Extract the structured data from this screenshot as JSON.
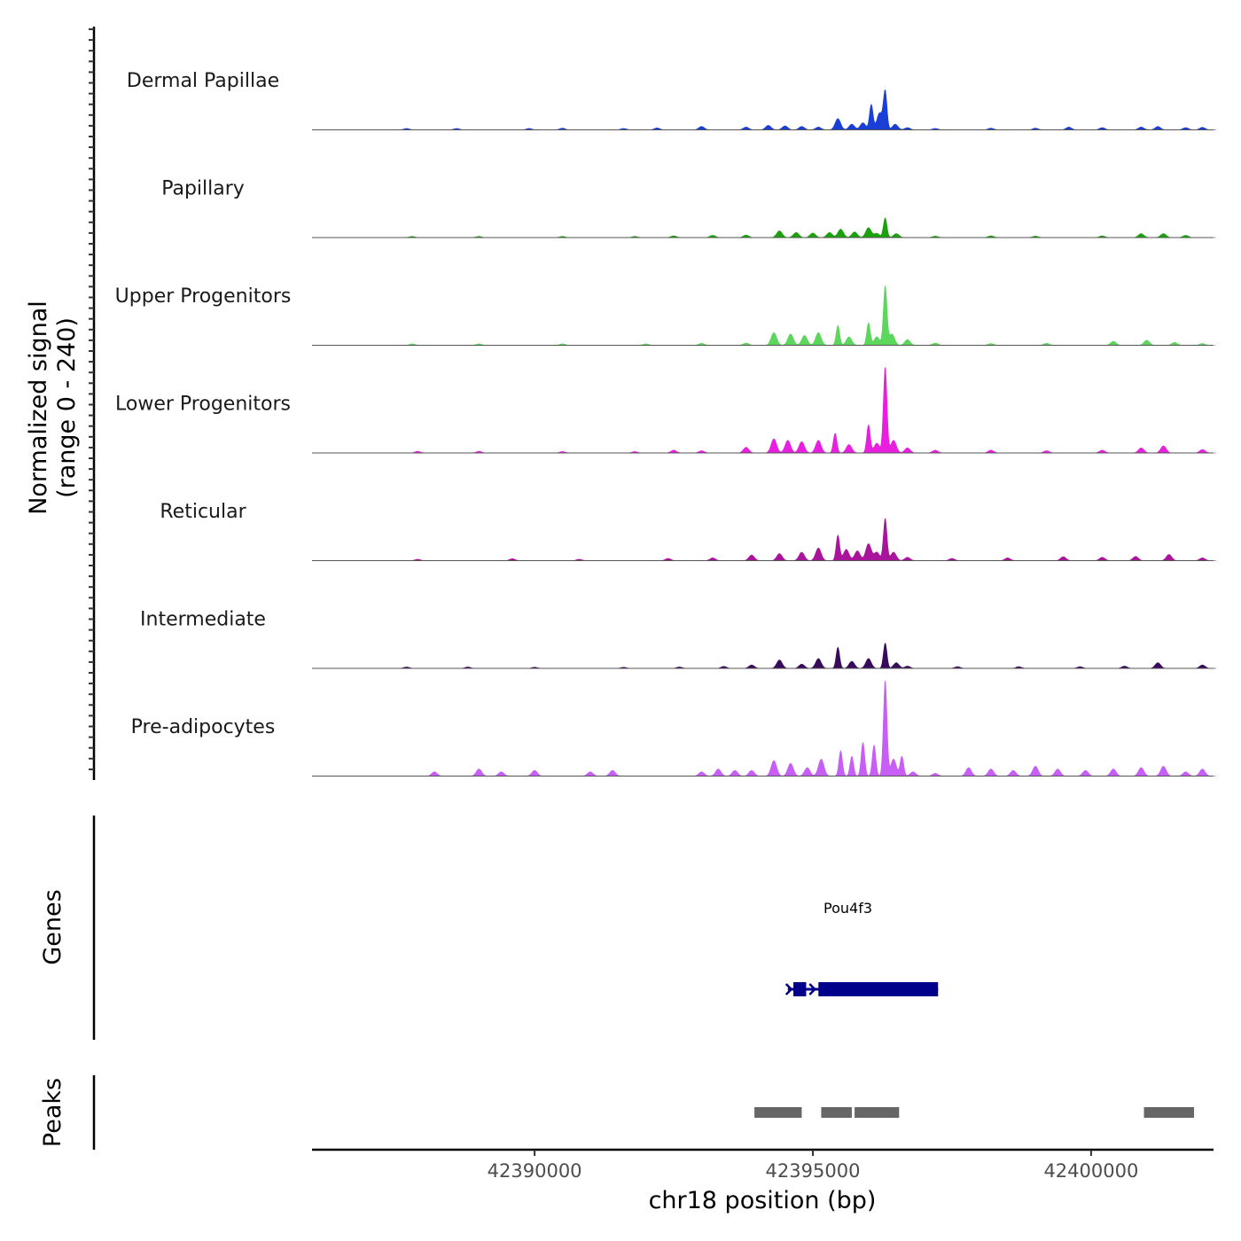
{
  "chart_data": {
    "type": "area",
    "title": "",
    "ylabel": "Normalized signal",
    "ylabel_range": "(range 0 - 240)",
    "ylim": [
      0,
      240
    ],
    "xlabel": "chr18 position (bp)",
    "xlim": [
      42386000,
      42402200
    ],
    "xticks": [
      42390000,
      42395000,
      42400000
    ],
    "xtick_labels": [
      "42390000",
      "42395000",
      "42400000"
    ],
    "tracks": [
      {
        "name": "Dermal Papillae",
        "color": "#1a3fd6",
        "peaks": [
          [
            42387700,
            5
          ],
          [
            42388600,
            5
          ],
          [
            42389900,
            5
          ],
          [
            42390500,
            6
          ],
          [
            42391600,
            5
          ],
          [
            42392200,
            7
          ],
          [
            42393000,
            12
          ],
          [
            42393800,
            10
          ],
          [
            42394200,
            16
          ],
          [
            42394500,
            14
          ],
          [
            42394800,
            12
          ],
          [
            42395100,
            10
          ],
          [
            42395450,
            40
          ],
          [
            42395700,
            20
          ],
          [
            42395900,
            25
          ],
          [
            42396050,
            90
          ],
          [
            42396200,
            60
          ],
          [
            42396300,
            135
          ],
          [
            42396480,
            20
          ],
          [
            42396700,
            8
          ],
          [
            42397200,
            5
          ],
          [
            42398200,
            6
          ],
          [
            42399000,
            6
          ],
          [
            42399600,
            10
          ],
          [
            42400200,
            8
          ],
          [
            42400900,
            10
          ],
          [
            42401200,
            12
          ],
          [
            42401700,
            8
          ],
          [
            42402000,
            9
          ]
        ]
      },
      {
        "name": "Papillary",
        "color": "#1aa10b",
        "peaks": [
          [
            42386800,
            5
          ],
          [
            42387800,
            4
          ],
          [
            42389000,
            4
          ],
          [
            42390500,
            4
          ],
          [
            42391800,
            4
          ],
          [
            42392500,
            6
          ],
          [
            42393200,
            8
          ],
          [
            42393800,
            9
          ],
          [
            42394400,
            24
          ],
          [
            42394700,
            18
          ],
          [
            42395000,
            16
          ],
          [
            42395300,
            18
          ],
          [
            42395500,
            30
          ],
          [
            42395750,
            20
          ],
          [
            42396000,
            35
          ],
          [
            42396150,
            15
          ],
          [
            42396300,
            70
          ],
          [
            42396500,
            14
          ],
          [
            42397200,
            5
          ],
          [
            42398200,
            6
          ],
          [
            42399000,
            5
          ],
          [
            42400200,
            6
          ],
          [
            42400900,
            14
          ],
          [
            42401300,
            14
          ],
          [
            42401700,
            8
          ]
        ]
      },
      {
        "name": "Upper Progenitors",
        "color": "#5cd65c",
        "peaks": [
          [
            42386800,
            7
          ],
          [
            42387800,
            5
          ],
          [
            42389000,
            5
          ],
          [
            42390500,
            5
          ],
          [
            42392000,
            5
          ],
          [
            42393000,
            7
          ],
          [
            42393800,
            8
          ],
          [
            42394300,
            45
          ],
          [
            42394600,
            40
          ],
          [
            42394850,
            35
          ],
          [
            42395100,
            45
          ],
          [
            42395450,
            70
          ],
          [
            42395650,
            30
          ],
          [
            42396000,
            80
          ],
          [
            42396150,
            30
          ],
          [
            42396300,
            210
          ],
          [
            42396420,
            40
          ],
          [
            42396700,
            20
          ],
          [
            42397200,
            8
          ],
          [
            42398200,
            6
          ],
          [
            42399200,
            7
          ],
          [
            42400400,
            14
          ],
          [
            42401000,
            18
          ],
          [
            42401500,
            10
          ],
          [
            42402000,
            6
          ]
        ]
      },
      {
        "name": "Lower Progenitors",
        "color": "#e81fdf",
        "peaks": [
          [
            42386800,
            5
          ],
          [
            42387900,
            6
          ],
          [
            42389000,
            6
          ],
          [
            42390500,
            5
          ],
          [
            42391800,
            5
          ],
          [
            42392500,
            10
          ],
          [
            42393000,
            8
          ],
          [
            42393800,
            20
          ],
          [
            42394300,
            50
          ],
          [
            42394550,
            45
          ],
          [
            42394800,
            40
          ],
          [
            42395100,
            45
          ],
          [
            42395400,
            70
          ],
          [
            42395650,
            30
          ],
          [
            42396000,
            100
          ],
          [
            42396150,
            35
          ],
          [
            42396300,
            305
          ],
          [
            42396450,
            45
          ],
          [
            42396700,
            18
          ],
          [
            42397200,
            10
          ],
          [
            42398200,
            10
          ],
          [
            42399200,
            8
          ],
          [
            42400200,
            10
          ],
          [
            42400900,
            18
          ],
          [
            42401300,
            25
          ],
          [
            42402000,
            12
          ]
        ]
      },
      {
        "name": "Reticular",
        "color": "#a8159a",
        "peaks": [
          [
            42386800,
            10
          ],
          [
            42387900,
            5
          ],
          [
            42389600,
            7
          ],
          [
            42390800,
            5
          ],
          [
            42392400,
            8
          ],
          [
            42393200,
            10
          ],
          [
            42393900,
            20
          ],
          [
            42394400,
            25
          ],
          [
            42394800,
            30
          ],
          [
            42395100,
            45
          ],
          [
            42395450,
            90
          ],
          [
            42395600,
            40
          ],
          [
            42395800,
            35
          ],
          [
            42396000,
            60
          ],
          [
            42396150,
            30
          ],
          [
            42396300,
            150
          ],
          [
            42396450,
            30
          ],
          [
            42396700,
            12
          ],
          [
            42397500,
            8
          ],
          [
            42398500,
            10
          ],
          [
            42399500,
            14
          ],
          [
            42400200,
            12
          ],
          [
            42400800,
            15
          ],
          [
            42401400,
            22
          ],
          [
            42402000,
            10
          ]
        ]
      },
      {
        "name": "Intermediate",
        "color": "#360b5c",
        "peaks": [
          [
            42386800,
            5
          ],
          [
            42387700,
            5
          ],
          [
            42388800,
            5
          ],
          [
            42390000,
            4
          ],
          [
            42391600,
            4
          ],
          [
            42392600,
            5
          ],
          [
            42393400,
            7
          ],
          [
            42393900,
            12
          ],
          [
            42394400,
            30
          ],
          [
            42394800,
            15
          ],
          [
            42395100,
            35
          ],
          [
            42395450,
            75
          ],
          [
            42395700,
            25
          ],
          [
            42396000,
            35
          ],
          [
            42396300,
            90
          ],
          [
            42396500,
            20
          ],
          [
            42396700,
            8
          ],
          [
            42397600,
            6
          ],
          [
            42398700,
            6
          ],
          [
            42399800,
            6
          ],
          [
            42400600,
            8
          ],
          [
            42401200,
            20
          ],
          [
            42402000,
            12
          ]
        ]
      },
      {
        "name": "Pre-adipocytes",
        "color": "#c75ef5",
        "peaks": [
          [
            42387200,
            5
          ],
          [
            42388200,
            15
          ],
          [
            42389000,
            25
          ],
          [
            42389400,
            15
          ],
          [
            42390000,
            20
          ],
          [
            42391000,
            15
          ],
          [
            42391400,
            20
          ],
          [
            42393000,
            15
          ],
          [
            42393300,
            25
          ],
          [
            42393600,
            20
          ],
          [
            42393900,
            20
          ],
          [
            42394300,
            55
          ],
          [
            42394600,
            45
          ],
          [
            42394900,
            30
          ],
          [
            42395150,
            60
          ],
          [
            42395500,
            90
          ],
          [
            42395700,
            70
          ],
          [
            42395900,
            120
          ],
          [
            42396100,
            110
          ],
          [
            42396300,
            340
          ],
          [
            42396450,
            60
          ],
          [
            42396600,
            70
          ],
          [
            42396800,
            15
          ],
          [
            42397200,
            10
          ],
          [
            42397800,
            30
          ],
          [
            42398200,
            25
          ],
          [
            42398600,
            20
          ],
          [
            42399000,
            35
          ],
          [
            42399400,
            25
          ],
          [
            42399900,
            20
          ],
          [
            42400400,
            25
          ],
          [
            42400900,
            30
          ],
          [
            42401300,
            35
          ],
          [
            42401700,
            15
          ],
          [
            42402000,
            25
          ]
        ]
      }
    ],
    "genes": [
      {
        "name": "Pou4f3",
        "strand": "+",
        "color": "#00008b",
        "exons": [
          [
            42394650,
            42394880
          ],
          [
            42395100,
            42397250
          ]
        ],
        "span": [
          42394550,
          42397250
        ]
      }
    ],
    "peaks_track": {
      "color": "#666666",
      "regions": [
        [
          42393950,
          42394800
        ],
        [
          42395150,
          42395700
        ],
        [
          42395750,
          42396550
        ],
        [
          42400950,
          42401850
        ]
      ]
    },
    "panel_labels": [
      "Genes",
      "Peaks"
    ]
  }
}
